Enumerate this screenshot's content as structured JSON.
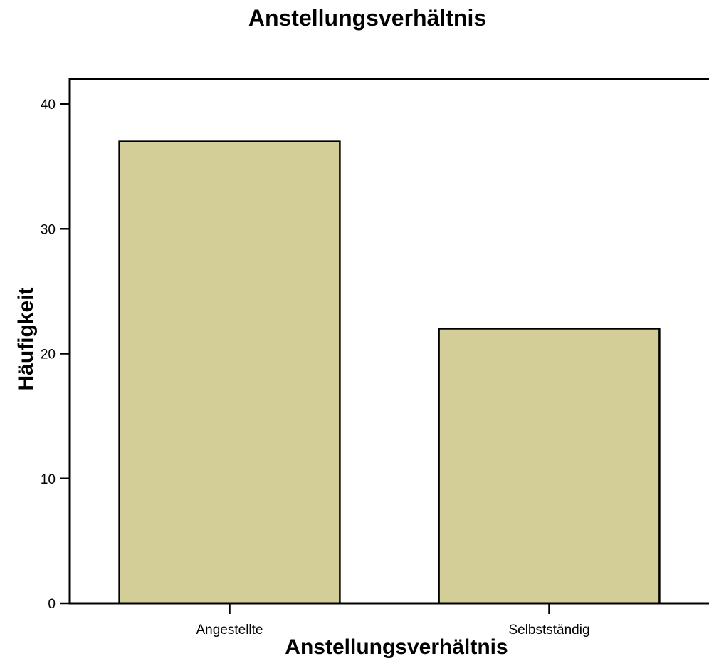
{
  "chart_data": {
    "type": "bar",
    "title": "Anstellungsverhältnis",
    "xlabel": "Anstellungsverhältnis",
    "ylabel": "Häufigkeit",
    "categories": [
      "Angestellte",
      "Selbstständig"
    ],
    "values": [
      37,
      22
    ],
    "ylim": [
      0,
      42
    ],
    "yticks": [
      0,
      10,
      20,
      30,
      40
    ],
    "grid": false,
    "bar_color": "#d3cd98",
    "bar_edge_color": "#000000"
  }
}
